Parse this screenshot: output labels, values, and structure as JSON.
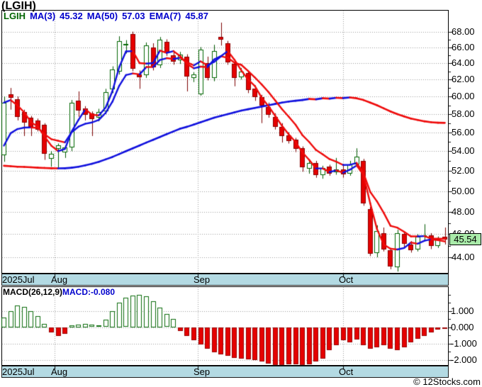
{
  "header": {
    "symbol_title": "(LGIH)"
  },
  "price_panel": {
    "legend": [
      {
        "label": "LGIH",
        "value": "",
        "color": "#006400"
      },
      {
        "label": "MA(3)",
        "value": "45.32",
        "color": "#0000cc"
      },
      {
        "label": "MA(50)",
        "value": "57.03",
        "color": "#0000cc"
      },
      {
        "label": "EMA(7)",
        "value": "45.87",
        "color": "#0000cc"
      }
    ],
    "y_tick_labels": [
      "68.00",
      "66.00",
      "64.00",
      "62.00",
      "60.00",
      "58.00",
      "56.00",
      "54.00",
      "52.00",
      "50.00",
      "48.00",
      "46.00",
      "44.00"
    ],
    "current_price": "45.54"
  },
  "macd_panel": {
    "legend_left": "MACD(26,12,9)",
    "legend_right": "MACD:-0.080",
    "y_tick_labels": [
      "1.000",
      "0.000",
      "-1.000",
      "-2.000"
    ]
  },
  "x_axis": {
    "labels": [
      {
        "text": "2025Jul"
      },
      {
        "text": "Aug"
      },
      {
        "text": "Sep"
      },
      {
        "text": "Oct"
      }
    ]
  },
  "footer": {
    "copyright": "© 12Stocks.com"
  },
  "colors": {
    "candle_up_border": "#006600",
    "candle_up_fill": "#ffffff",
    "candle_up_wick": "#005a00",
    "candle_down_border": "#8b0000",
    "candle_down_fill": "#e60000",
    "candle_down_wick": "#7d0000",
    "line_up": "#1010dd",
    "line_down": "#ee0a0a",
    "macd_pos_border": "#0b6b0b",
    "macd_pos_fill": "#ffffff",
    "macd_neg_fill": "#e60000",
    "macd_neg_border": "#990000",
    "grid": "#9a9a9a",
    "date_band_bg": "#b3dae3",
    "price_box_bg": "#a9eba9",
    "legend_symbol": "#006400",
    "legend_value": "#0000cc"
  },
  "chart_data": {
    "type": "candlestick",
    "symbol": "LGIH",
    "y_scale": "log",
    "title": "(LGIH)",
    "y_axis_ticks": [
      68,
      66,
      64,
      62,
      60,
      58,
      56,
      54,
      52,
      50,
      48,
      46,
      44
    ],
    "y_minor_tick_step": 1,
    "current_price": 45.54,
    "indicators": {
      "ma_fast_period": 3,
      "ma_slow_period": 50,
      "ema_period": 7,
      "ma_fast_last": 45.32,
      "ma_slow_last": 57.03,
      "ema_last": 45.87,
      "macd_params": [
        26,
        12,
        9
      ],
      "macd_last": -0.08
    },
    "months_gridline_index": [
      7.5,
      28.6,
      50.05
    ],
    "candles_ohlc": [
      [
        53.6,
        60.0,
        52.9,
        59.3
      ],
      [
        60.3,
        61.0,
        58.5,
        59.9
      ],
      [
        59.7,
        60.0,
        57.3,
        57.7
      ],
      [
        58.2,
        58.5,
        55.6,
        57.0
      ],
      [
        57.6,
        57.8,
        55.6,
        56.6
      ],
      [
        57.3,
        57.5,
        56.1,
        56.3
      ],
      [
        56.8,
        57.0,
        53.1,
        53.7
      ],
      [
        53.2,
        54.0,
        52.4,
        53.7
      ],
      [
        54.2,
        54.8,
        52.3,
        54.6
      ],
      [
        53.9,
        54.6,
        53.3,
        54.4
      ],
      [
        54.4,
        59.6,
        54.0,
        59.3
      ],
      [
        59.5,
        60.6,
        57.7,
        58.4
      ],
      [
        58.6,
        58.9,
        57.3,
        57.9
      ],
      [
        58.1,
        58.3,
        55.6,
        57.5
      ],
      [
        57.6,
        58.6,
        57.2,
        58.2
      ],
      [
        58.3,
        60.9,
        58.0,
        60.5
      ],
      [
        60.8,
        63.6,
        60.4,
        63.2
      ],
      [
        63.0,
        67.4,
        62.6,
        66.8
      ],
      [
        66.2,
        66.9,
        65.2,
        66.4
      ],
      [
        67.7,
        68.0,
        63.0,
        63.3
      ],
      [
        62.6,
        63.1,
        60.9,
        62.3
      ],
      [
        62.5,
        66.6,
        62.2,
        66.2
      ],
      [
        66.0,
        66.5,
        63.1,
        63.5
      ],
      [
        63.8,
        67.3,
        63.4,
        67.0
      ],
      [
        66.7,
        67.0,
        64.9,
        65.3
      ],
      [
        65.0,
        65.6,
        63.8,
        64.2
      ],
      [
        64.4,
        65.4,
        63.9,
        65.1
      ],
      [
        64.8,
        65.1,
        60.6,
        62.4
      ],
      [
        62.2,
        62.9,
        61.7,
        62.6
      ],
      [
        60.3,
        66.0,
        60.1,
        65.7
      ],
      [
        64.0,
        64.8,
        61.9,
        62.2
      ],
      [
        62.2,
        66.3,
        61.8,
        65.5
      ],
      [
        67.3,
        69.2,
        66.2,
        66.9
      ],
      [
        66.5,
        66.8,
        63.8,
        64.1
      ],
      [
        63.9,
        64.3,
        61.2,
        62.2
      ],
      [
        62.3,
        63.4,
        62.0,
        63.0
      ],
      [
        62.8,
        63.0,
        60.4,
        60.8
      ],
      [
        60.9,
        61.3,
        59.5,
        59.9
      ],
      [
        59.9,
        60.2,
        57.0,
        58.9
      ],
      [
        58.8,
        59.3,
        57.6,
        57.9
      ],
      [
        57.7,
        58.1,
        56.3,
        56.6
      ],
      [
        56.6,
        57.0,
        54.9,
        55.6
      ],
      [
        55.7,
        56.0,
        54.8,
        55.1
      ],
      [
        55.2,
        55.4,
        53.9,
        54.2
      ],
      [
        54.3,
        54.5,
        51.9,
        52.3
      ],
      [
        52.2,
        53.0,
        51.7,
        52.8
      ],
      [
        52.8,
        53.0,
        51.3,
        51.6
      ],
      [
        51.6,
        52.5,
        51.2,
        52.3
      ],
      [
        52.4,
        52.6,
        51.5,
        51.7
      ],
      [
        51.8,
        53.3,
        51.6,
        52.1
      ],
      [
        52.1,
        52.7,
        51.3,
        51.6
      ],
      [
        51.7,
        53.0,
        51.5,
        52.6
      ],
      [
        52.6,
        54.3,
        52.4,
        53.4
      ],
      [
        53.0,
        53.2,
        48.6,
        48.8
      ],
      [
        48.3,
        48.5,
        44.1,
        44.3
      ],
      [
        44.4,
        46.8,
        44.0,
        46.3
      ],
      [
        46.1,
        46.6,
        44.5,
        44.7
      ],
      [
        44.6,
        44.8,
        43.0,
        43.2
      ],
      [
        43.2,
        46.4,
        42.8,
        46.1
      ],
      [
        46.0,
        46.2,
        44.9,
        45.1
      ],
      [
        45.1,
        45.4,
        44.4,
        44.6
      ],
      [
        44.7,
        46.0,
        44.5,
        45.8
      ],
      [
        45.8,
        46.9,
        45.4,
        45.9
      ],
      [
        45.9,
        46.1,
        44.7,
        44.95
      ],
      [
        45.0,
        45.8,
        44.8,
        45.6
      ],
      [
        45.8,
        46.6,
        45.1,
        45.54
      ]
    ],
    "ma50": [
      52.5,
      52.45,
      52.4,
      52.38,
      52.35,
      52.3,
      52.28,
      52.25,
      52.24,
      52.25,
      52.3,
      52.4,
      52.55,
      52.7,
      52.9,
      53.15,
      53.4,
      53.7,
      54.0,
      54.3,
      54.6,
      54.9,
      55.2,
      55.5,
      55.8,
      56.1,
      56.4,
      56.6,
      56.85,
      57.1,
      57.35,
      57.6,
      57.8,
      58.0,
      58.2,
      58.4,
      58.55,
      58.7,
      58.85,
      59.0,
      59.15,
      59.3,
      59.42,
      59.52,
      59.6,
      59.72,
      59.68,
      59.8,
      59.76,
      59.86,
      59.82,
      59.9,
      59.8,
      59.6,
      59.3,
      59.0,
      58.65,
      58.3,
      58.0,
      57.75,
      57.5,
      57.35,
      57.2,
      57.1,
      57.05,
      57.03
    ],
    "macd_histogram": [
      0.6,
      1.0,
      1.35,
      1.25,
      1.0,
      0.7,
      0.2,
      -0.3,
      -0.5,
      -0.4,
      0.12,
      0.18,
      0.22,
      0.15,
      0.1,
      0.45,
      1.0,
      1.5,
      1.8,
      1.95,
      2.0,
      1.9,
      1.6,
      1.2,
      0.8,
      0.5,
      -0.2,
      -0.5,
      -0.8,
      -1.05,
      -1.3,
      -1.5,
      -1.65,
      -1.75,
      -1.85,
      -1.9,
      -1.95,
      -2.0,
      -2.1,
      -2.2,
      -2.3,
      -2.3,
      -2.28,
      -2.25,
      -2.3,
      -2.25,
      -2.1,
      -1.9,
      -1.4,
      -1.1,
      -0.8,
      -0.9,
      -0.75,
      -1.1,
      -1.3,
      -1.2,
      -1.1,
      -1.3,
      -1.4,
      -1.2,
      -0.9,
      -0.7,
      -0.5,
      -0.3,
      -0.15,
      -0.08
    ],
    "macd_axis_ticks": [
      1,
      0,
      -1,
      -2
    ]
  }
}
